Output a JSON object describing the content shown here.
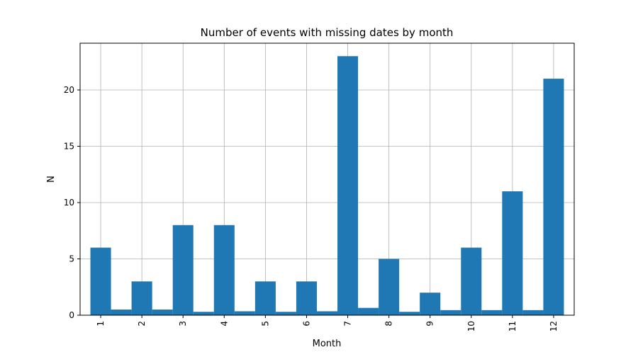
{
  "chart_data": {
    "type": "bar",
    "title": "Number of events with missing dates by month",
    "xlabel": "Month",
    "ylabel": "N",
    "categories": [
      "1",
      "2",
      "3",
      "4",
      "5",
      "6",
      "7",
      "8",
      "9",
      "10",
      "11",
      "12"
    ],
    "values": [
      6,
      3,
      8,
      8,
      3,
      3,
      23,
      5,
      2,
      6,
      11,
      21
    ],
    "overlay_series": [
      {
        "category": "1.5",
        "value": 0.5
      },
      {
        "category": "2.5",
        "value": 0.5
      },
      {
        "category": "3.5",
        "value": 0.3
      },
      {
        "category": "4.5",
        "value": 0.35
      },
      {
        "category": "5.5",
        "value": 0.3
      },
      {
        "category": "6.5",
        "value": 0.35
      },
      {
        "category": "7.5",
        "value": 0.65
      },
      {
        "category": "8.5",
        "value": 0.3
      },
      {
        "category": "9.5",
        "value": 0.45
      },
      {
        "category": "10.5",
        "value": 0.45
      },
      {
        "category": "11.5",
        "value": 0.45
      }
    ],
    "yticks": [
      0,
      5,
      10,
      15,
      20
    ],
    "ylim": [
      0,
      24.15
    ],
    "grid": true,
    "bar_color": "#1f77b4",
    "grid_color": "#b0b0b0"
  }
}
